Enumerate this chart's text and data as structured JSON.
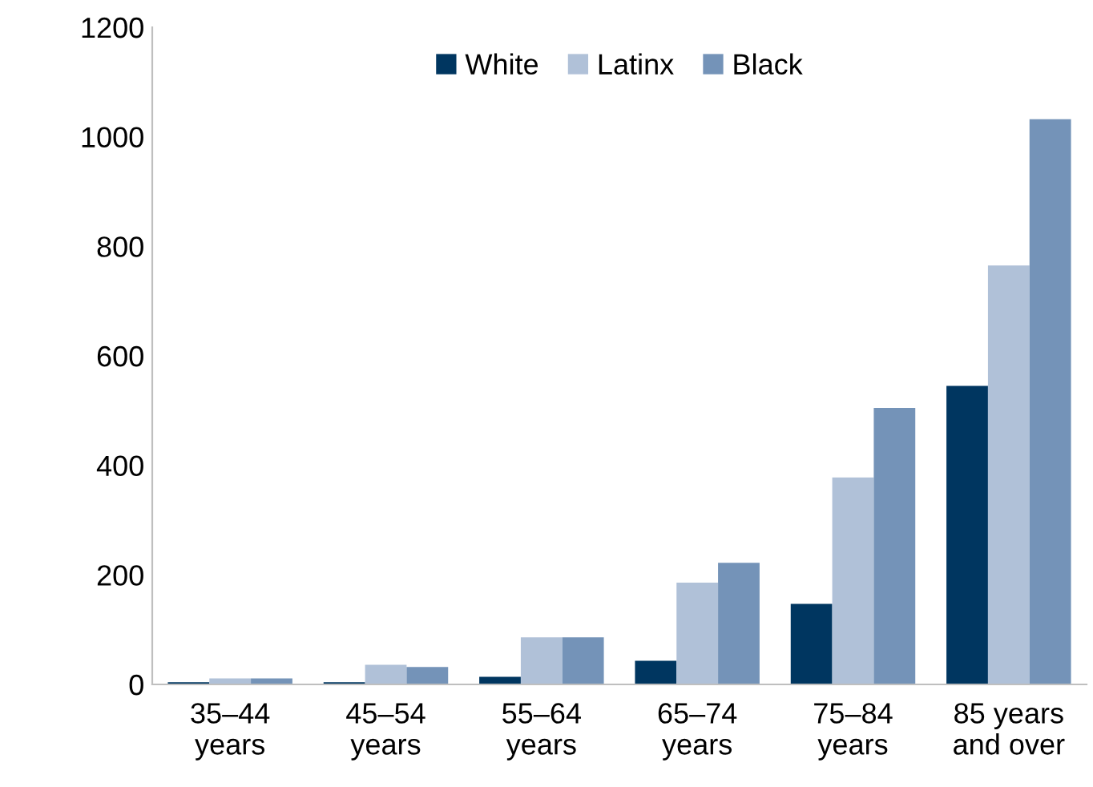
{
  "chart_data": {
    "type": "bar",
    "categories": [
      "35–44\nyears",
      "45–54\nyears",
      "55–64\nyears",
      "65–74\nyears",
      "75–84\nyears",
      "85 years\nand over"
    ],
    "series": [
      {
        "name": "White",
        "color": "#003660",
        "values": [
          4,
          4,
          14,
          43,
          147,
          545
        ]
      },
      {
        "name": "Latinx",
        "color": "#b0c1d8",
        "values": [
          11,
          36,
          86,
          186,
          378,
          765
        ]
      },
      {
        "name": "Black",
        "color": "#7493b8",
        "values": [
          11,
          32,
          86,
          222,
          505,
          1032
        ]
      }
    ],
    "ylim": [
      0,
      1200
    ],
    "yticks": [
      0,
      200,
      400,
      600,
      800,
      1000,
      1200
    ],
    "grid": false,
    "legend": "top"
  }
}
